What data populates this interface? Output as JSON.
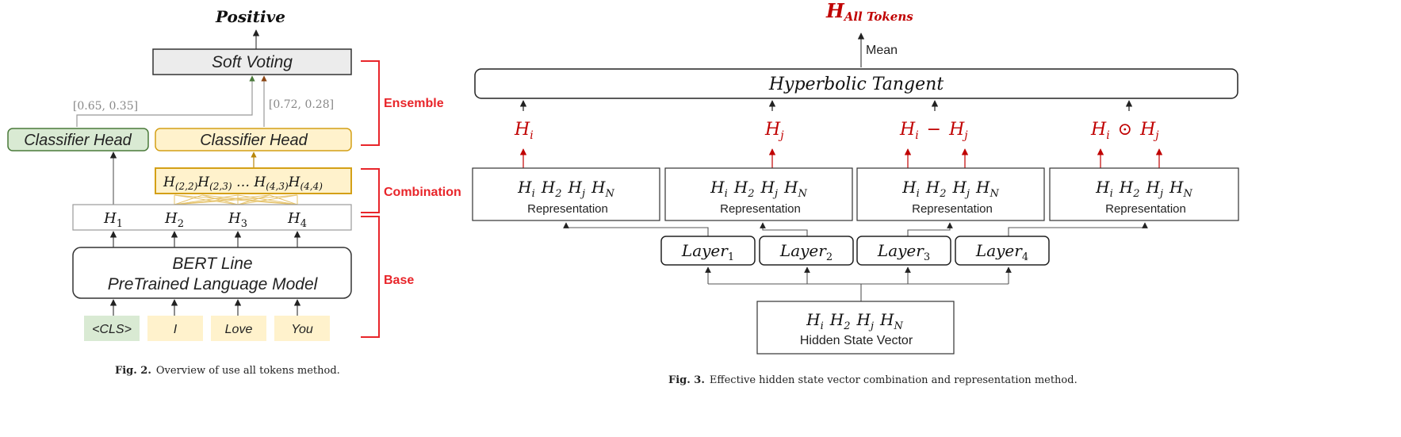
{
  "fig2": {
    "output": "Positive",
    "soft_voting": "Soft Voting",
    "vote_left": "[0.65, 0.35]",
    "vote_right": "[0.72, 0.28]",
    "classifier_left": "Classifier Head",
    "classifier_right": "Classifier Head",
    "group_labels": {
      "ensemble": "Ensemble",
      "combination": "Combination",
      "base": "Base"
    },
    "combination_seq": [
      "H",
      "(2,2)",
      "H",
      "(2,3)",
      " … H",
      "(4,3)",
      "H",
      "(4,4)"
    ],
    "hidden": [
      {
        "base": "H",
        "sub": "1"
      },
      {
        "base": "H",
        "sub": "2"
      },
      {
        "base": "H",
        "sub": "3"
      },
      {
        "base": "H",
        "sub": "4"
      }
    ],
    "bert_line1": "BERT Line",
    "bert_line2": "PreTrained Language Model",
    "tokens": [
      "<CLS>",
      "I",
      "Love",
      "You"
    ],
    "caption_label": "Fig. 2.",
    "caption_text": "Overview of use all tokens method."
  },
  "fig3": {
    "top": {
      "base": "H",
      "sub": "All Tokens"
    },
    "mean": "Mean",
    "tanh": "Hyperbolic Tangent",
    "ops": [
      "Hi",
      "Hj",
      "Hi − Hj",
      "Hi ⊙ Hj"
    ],
    "repr_label": "Representation",
    "layers": [
      {
        "base": "Layer",
        "sub": "1"
      },
      {
        "base": "Layer",
        "sub": "2"
      },
      {
        "base": "Layer",
        "sub": "3"
      },
      {
        "base": "Layer",
        "sub": "4"
      }
    ],
    "hidden_label": "Hidden State Vector",
    "caption_label": "Fig. 3.",
    "caption_text": "Effective hidden state vector combination and representation method."
  },
  "colors": {
    "red": "#c00000",
    "bracket_red": "#e8252a",
    "green_fill": "#d9ead3",
    "green_stroke": "#4a7a3a",
    "yellow_fill": "#fff2cc",
    "yellow_stroke": "#d4a017",
    "gray_fill": "#eeeeee"
  }
}
